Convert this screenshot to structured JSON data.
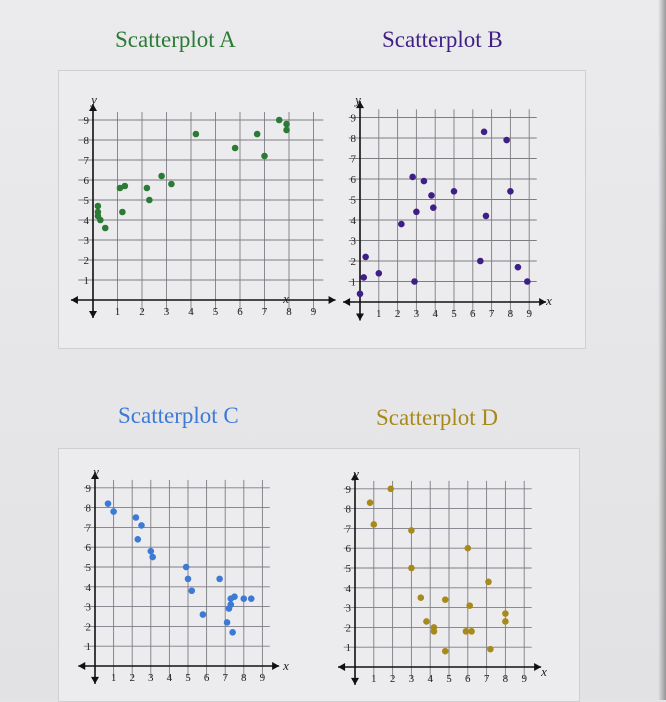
{
  "chart_data": [
    {
      "type": "scatter",
      "title": "Scatterplot A",
      "color": "#2b7a35",
      "xlabel": "x",
      "ylabel": "y",
      "xlim": [
        0,
        9
      ],
      "ylim": [
        0,
        9
      ],
      "xticks": [
        "1",
        "2",
        "3",
        "4",
        "5",
        "6",
        "7",
        "8",
        "9"
      ],
      "yticks": [
        "1",
        "2",
        "3",
        "4",
        "5",
        "6",
        "7",
        "8",
        "9"
      ],
      "grid": true,
      "points": [
        [
          0.2,
          4.7
        ],
        [
          0.2,
          4.4
        ],
        [
          0.2,
          4.2
        ],
        [
          0.3,
          4.0
        ],
        [
          0.5,
          3.6
        ],
        [
          1.1,
          5.6
        ],
        [
          1.3,
          5.7
        ],
        [
          1.2,
          4.4
        ],
        [
          2.2,
          5.6
        ],
        [
          2.3,
          5.0
        ],
        [
          2.8,
          6.2
        ],
        [
          3.2,
          5.8
        ],
        [
          4.2,
          8.3
        ],
        [
          5.8,
          7.6
        ],
        [
          6.7,
          8.3
        ],
        [
          7.0,
          7.2
        ],
        [
          7.6,
          9.0
        ],
        [
          7.9,
          8.8
        ],
        [
          7.9,
          8.5
        ]
      ]
    },
    {
      "type": "scatter",
      "title": "Scatterplot B",
      "color": "#3f1f86",
      "xlabel": "x",
      "ylabel": "y",
      "xlim": [
        0,
        9
      ],
      "ylim": [
        0,
        9
      ],
      "xticks": [
        "1",
        "2",
        "3",
        "4",
        "5",
        "6",
        "7",
        "8",
        "9"
      ],
      "yticks": [
        "1",
        "2",
        "3",
        "4",
        "5",
        "6",
        "7",
        "8",
        "9"
      ],
      "grid": true,
      "points": [
        [
          0.0,
          0.4
        ],
        [
          0.2,
          1.2
        ],
        [
          0.3,
          2.2
        ],
        [
          1.0,
          1.4
        ],
        [
          2.2,
          3.8
        ],
        [
          2.8,
          6.1
        ],
        [
          3.0,
          4.4
        ],
        [
          3.4,
          5.9
        ],
        [
          3.8,
          5.2
        ],
        [
          3.9,
          4.6
        ],
        [
          5.0,
          5.4
        ],
        [
          2.9,
          1.0
        ],
        [
          6.4,
          2.0
        ],
        [
          6.6,
          8.3
        ],
        [
          6.7,
          4.2
        ],
        [
          7.8,
          7.9
        ],
        [
          8.0,
          5.4
        ],
        [
          8.4,
          1.7
        ],
        [
          8.9,
          1.0
        ]
      ]
    },
    {
      "type": "scatter",
      "title": "Scatterplot C",
      "color": "#3d7ad6",
      "xlabel": "x",
      "ylabel": "y",
      "xlim": [
        0,
        9
      ],
      "ylim": [
        0,
        9
      ],
      "xticks": [
        "1",
        "2",
        "3",
        "4",
        "5",
        "6",
        "7",
        "8",
        "9"
      ],
      "yticks": [
        "1",
        "2",
        "3",
        "4",
        "5",
        "6",
        "7",
        "8",
        "9"
      ],
      "grid": true,
      "points": [
        [
          0.7,
          8.2
        ],
        [
          1.0,
          7.8
        ],
        [
          2.2,
          7.5
        ],
        [
          2.5,
          7.1
        ],
        [
          2.3,
          6.4
        ],
        [
          3.0,
          5.8
        ],
        [
          3.1,
          5.5
        ],
        [
          4.9,
          5.0
        ],
        [
          5.0,
          4.4
        ],
        [
          5.2,
          3.8
        ],
        [
          5.8,
          2.6
        ],
        [
          6.7,
          4.4
        ],
        [
          7.1,
          2.2
        ],
        [
          7.2,
          2.9
        ],
        [
          7.3,
          3.4
        ],
        [
          7.4,
          1.7
        ],
        [
          7.5,
          3.5
        ],
        [
          8.0,
          3.4
        ],
        [
          8.4,
          3.4
        ],
        [
          7.3,
          3.1
        ]
      ]
    },
    {
      "type": "scatter",
      "title": "Scatterplot D",
      "color": "#a88a1c",
      "xlabel": "x",
      "ylabel": "y",
      "xlim": [
        0,
        9
      ],
      "ylim": [
        0,
        9
      ],
      "xticks": [
        "1",
        "2",
        "3",
        "4",
        "5",
        "6",
        "7",
        "8",
        "9"
      ],
      "yticks": [
        "1",
        "2",
        "3",
        "4",
        "5",
        "6",
        "7",
        "8",
        "9"
      ],
      "grid": true,
      "points": [
        [
          0.8,
          8.3
        ],
        [
          1.0,
          7.2
        ],
        [
          1.9,
          9.0
        ],
        [
          3.0,
          6.9
        ],
        [
          3.0,
          5.0
        ],
        [
          3.5,
          3.5
        ],
        [
          3.8,
          2.3
        ],
        [
          4.2,
          1.8
        ],
        [
          4.2,
          2.0
        ],
        [
          4.8,
          3.4
        ],
        [
          4.8,
          0.8
        ],
        [
          6.0,
          6.0
        ],
        [
          6.1,
          3.1
        ],
        [
          6.2,
          1.8
        ],
        [
          7.1,
          4.3
        ],
        [
          7.2,
          0.9
        ],
        [
          8.0,
          2.7
        ],
        [
          8.0,
          2.3
        ],
        [
          5.9,
          1.8
        ]
      ]
    }
  ]
}
